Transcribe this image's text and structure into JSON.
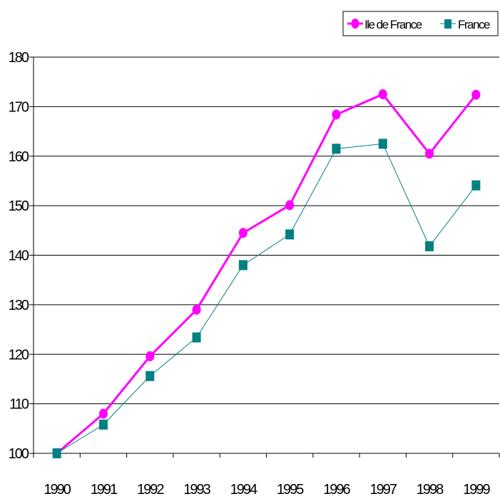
{
  "chart_data": {
    "type": "line",
    "categories": [
      "1990",
      "1991",
      "1992",
      "1993",
      "1994",
      "1995",
      "1996",
      "1997",
      "1998",
      "1999"
    ],
    "series": [
      {
        "name": "Ile de France",
        "color": "#ff00ff",
        "marker": "circle",
        "values": [
          100,
          108,
          119.6,
          129,
          144.5,
          150.1,
          168.4,
          172.5,
          160.5,
          172.4
        ]
      },
      {
        "name": "France",
        "color": "#008080",
        "marker": "square",
        "values": [
          100,
          105.8,
          115.6,
          123.4,
          138,
          144.2,
          161.5,
          162.5,
          141.8,
          154.1
        ]
      }
    ],
    "yticks": [
      "100",
      "110",
      "120",
      "130",
      "140",
      "150",
      "160",
      "170",
      "180"
    ],
    "ylim": [
      100,
      180
    ],
    "grid": true,
    "legend": "top-right"
  }
}
